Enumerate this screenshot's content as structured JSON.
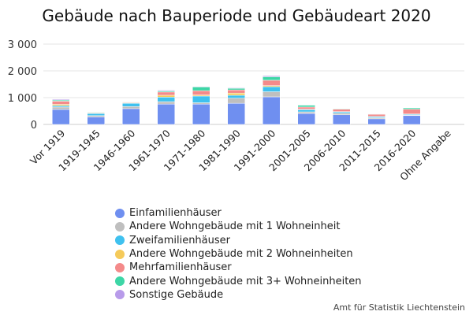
{
  "chart_data": {
    "type": "bar",
    "stacked": true,
    "title": "Gebäude nach Bauperiode und Gebäudeart 2020",
    "xlabel": "",
    "ylabel": "",
    "ylim": [
      0,
      3000
    ],
    "yticks": [
      0,
      1000,
      2000,
      3000
    ],
    "ytick_labels": [
      "0",
      "1 000",
      "2 000",
      "3 000"
    ],
    "grid": true,
    "legend_position": "bottom",
    "categories": [
      "Vor 1919",
      "1919-1945",
      "1946-1960",
      "1961-1970",
      "1971-1980",
      "1981-1990",
      "1991-2000",
      "2001-2005",
      "2006-2010",
      "2011-2015",
      "2016-2020",
      "Ohne Angabe"
    ],
    "series": [
      {
        "name": "Einfamilienhäuser",
        "color": "#6f8ff0",
        "values": [
          560,
          280,
          590,
          760,
          760,
          790,
          1030,
          410,
          360,
          210,
          330,
          0
        ]
      },
      {
        "name": "Andere Wohngebäude mit 1 Wohneinheit",
        "color": "#bfbfbf",
        "values": [
          90,
          50,
          80,
          90,
          50,
          190,
          190,
          60,
          60,
          40,
          20,
          0
        ]
      },
      {
        "name": "Zweifamilienhäuser",
        "color": "#3fc1ef",
        "values": [
          50,
          80,
          120,
          170,
          250,
          110,
          190,
          80,
          50,
          40,
          30,
          0
        ]
      },
      {
        "name": "Andere Wohngebäude mit 2 Wohneinheiten",
        "color": "#f5ca5a",
        "values": [
          50,
          20,
          20,
          70,
          40,
          80,
          40,
          20,
          10,
          10,
          10,
          0
        ]
      },
      {
        "name": "Mehrfamilienhäuser",
        "color": "#f48a8a",
        "values": [
          120,
          20,
          20,
          120,
          160,
          120,
          200,
          80,
          90,
          80,
          180,
          0
        ]
      },
      {
        "name": "Andere Wohngebäude mit 3+ Wohneinheiten",
        "color": "#3dd6a6",
        "values": [
          40,
          20,
          20,
          40,
          140,
          60,
          130,
          70,
          20,
          10,
          50,
          0
        ]
      },
      {
        "name": "Sonstige Gebäude",
        "color": "#b89bea",
        "values": [
          30,
          10,
          10,
          30,
          20,
          20,
          40,
          10,
          10,
          10,
          10,
          0
        ]
      }
    ]
  },
  "source": "Amt für Statistik Liechtenstein"
}
